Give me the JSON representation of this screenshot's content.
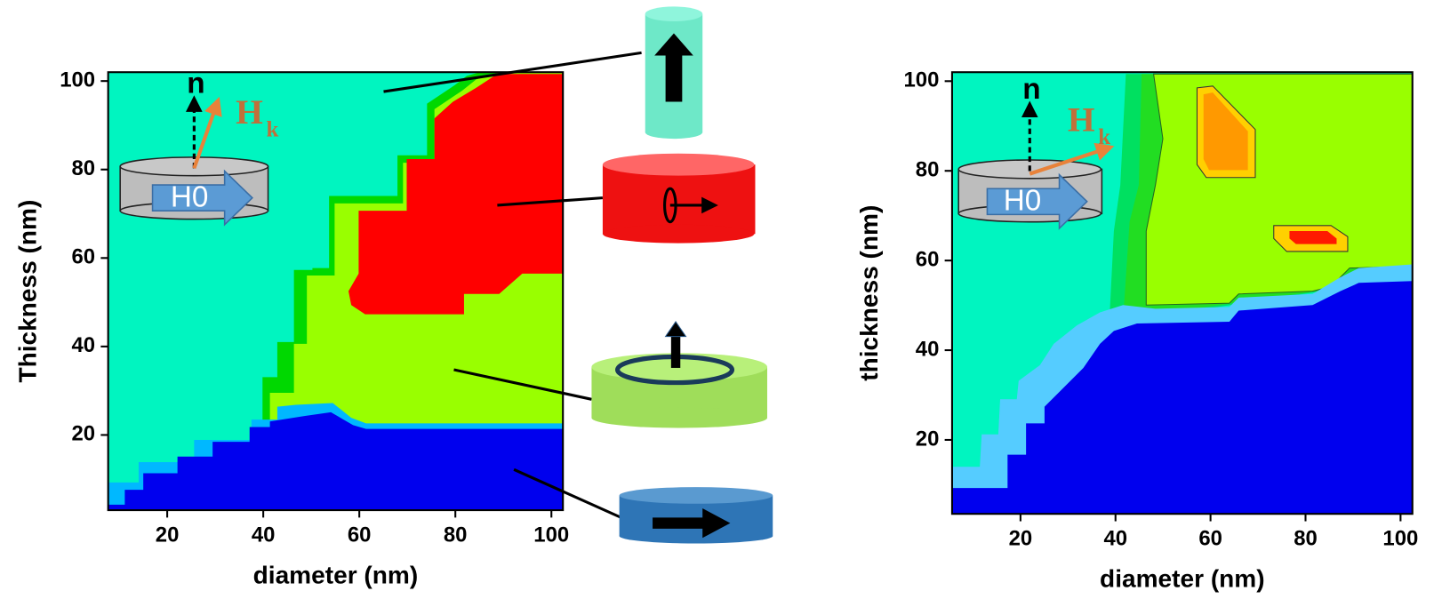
{
  "chart_data": [
    {
      "type": "contour",
      "xlabel": "diameter (nm)",
      "ylabel": "Thickness (nm)",
      "xlim": [
        7.7,
        102.4
      ],
      "ylim": [
        3,
        102
      ],
      "xticks": [
        20,
        40,
        60,
        80,
        100
      ],
      "yticks": [
        20,
        40,
        60,
        80,
        100
      ],
      "inset": {
        "normal": "n",
        "field": "H",
        "field_sub": "k",
        "bias": "H0"
      }
    },
    {
      "type": "contour",
      "xlabel": "diameter (nm)",
      "ylabel": "thickness (nm)",
      "xlim": [
        5.6,
        102.5
      ],
      "ylim": [
        3.5,
        102
      ],
      "xticks": [
        20,
        40,
        60,
        80,
        100
      ],
      "yticks": [
        20,
        40,
        60,
        80,
        100
      ],
      "inset": {
        "normal": "n",
        "field": "H",
        "field_sub": "k",
        "bias": "H0"
      }
    }
  ]
}
